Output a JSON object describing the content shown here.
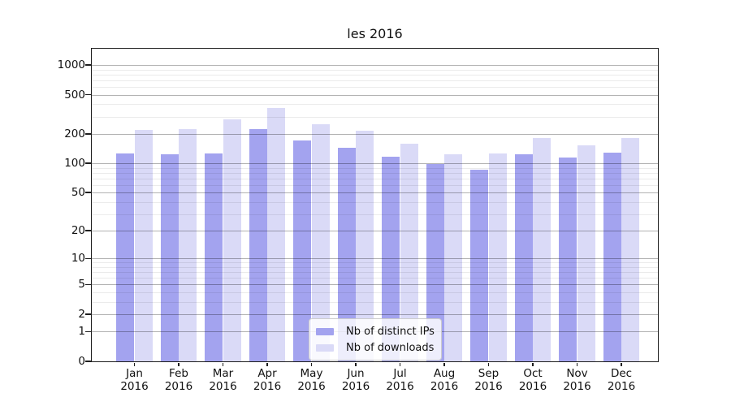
{
  "chart_data": {
    "type": "bar",
    "title": "les 2016",
    "months": [
      "Jan",
      "Feb",
      "Mar",
      "Apr",
      "May",
      "Jun",
      "Jul",
      "Aug",
      "Sep",
      "Oct",
      "Nov",
      "Dec"
    ],
    "year": "2016",
    "categories": [
      "Jan 2016",
      "Feb 2016",
      "Mar 2016",
      "Apr 2016",
      "May 2016",
      "Jun 2016",
      "Jul 2016",
      "Aug 2016",
      "Sep 2016",
      "Oct 2016",
      "Nov 2016",
      "Dec 2016"
    ],
    "series": [
      {
        "key": "ips",
        "name": "Nb of distinct IPs",
        "color": "#a3a3ef",
        "values": [
          126,
          124,
          126,
          223,
          171,
          144,
          117,
          98,
          86,
          124,
          115,
          128
        ]
      },
      {
        "key": "downloads",
        "name": "Nb of downloads",
        "color": "#dadaf7",
        "values": [
          219,
          223,
          280,
          366,
          250,
          215,
          159,
          124,
          126,
          181,
          153,
          181
        ]
      }
    ],
    "y_axis": {
      "scale": "log1p",
      "major_ticks": [
        1000,
        500,
        200,
        100,
        50,
        20,
        10,
        5,
        2,
        1,
        0
      ],
      "minor_ticks": [
        900,
        800,
        700,
        600,
        400,
        300,
        90,
        80,
        70,
        60,
        40,
        30,
        9,
        8,
        7,
        6,
        4,
        3
      ],
      "range": [
        0,
        1500
      ],
      "grid": true
    },
    "x_axis": {
      "tick_label_format": "two-line month over year"
    },
    "legend": {
      "position": "inside lower center",
      "entries": [
        "Nb of distinct IPs",
        "Nb of downloads"
      ]
    },
    "colors": {
      "background": "#ffffff",
      "bar_dark": "#a3a3ef",
      "bar_light": "#dadaf7",
      "grid_major": "rgba(0,0,0,0.30)",
      "grid_minor": "rgba(0,0,0,0.08)",
      "spine": "#1d1d1d"
    }
  }
}
